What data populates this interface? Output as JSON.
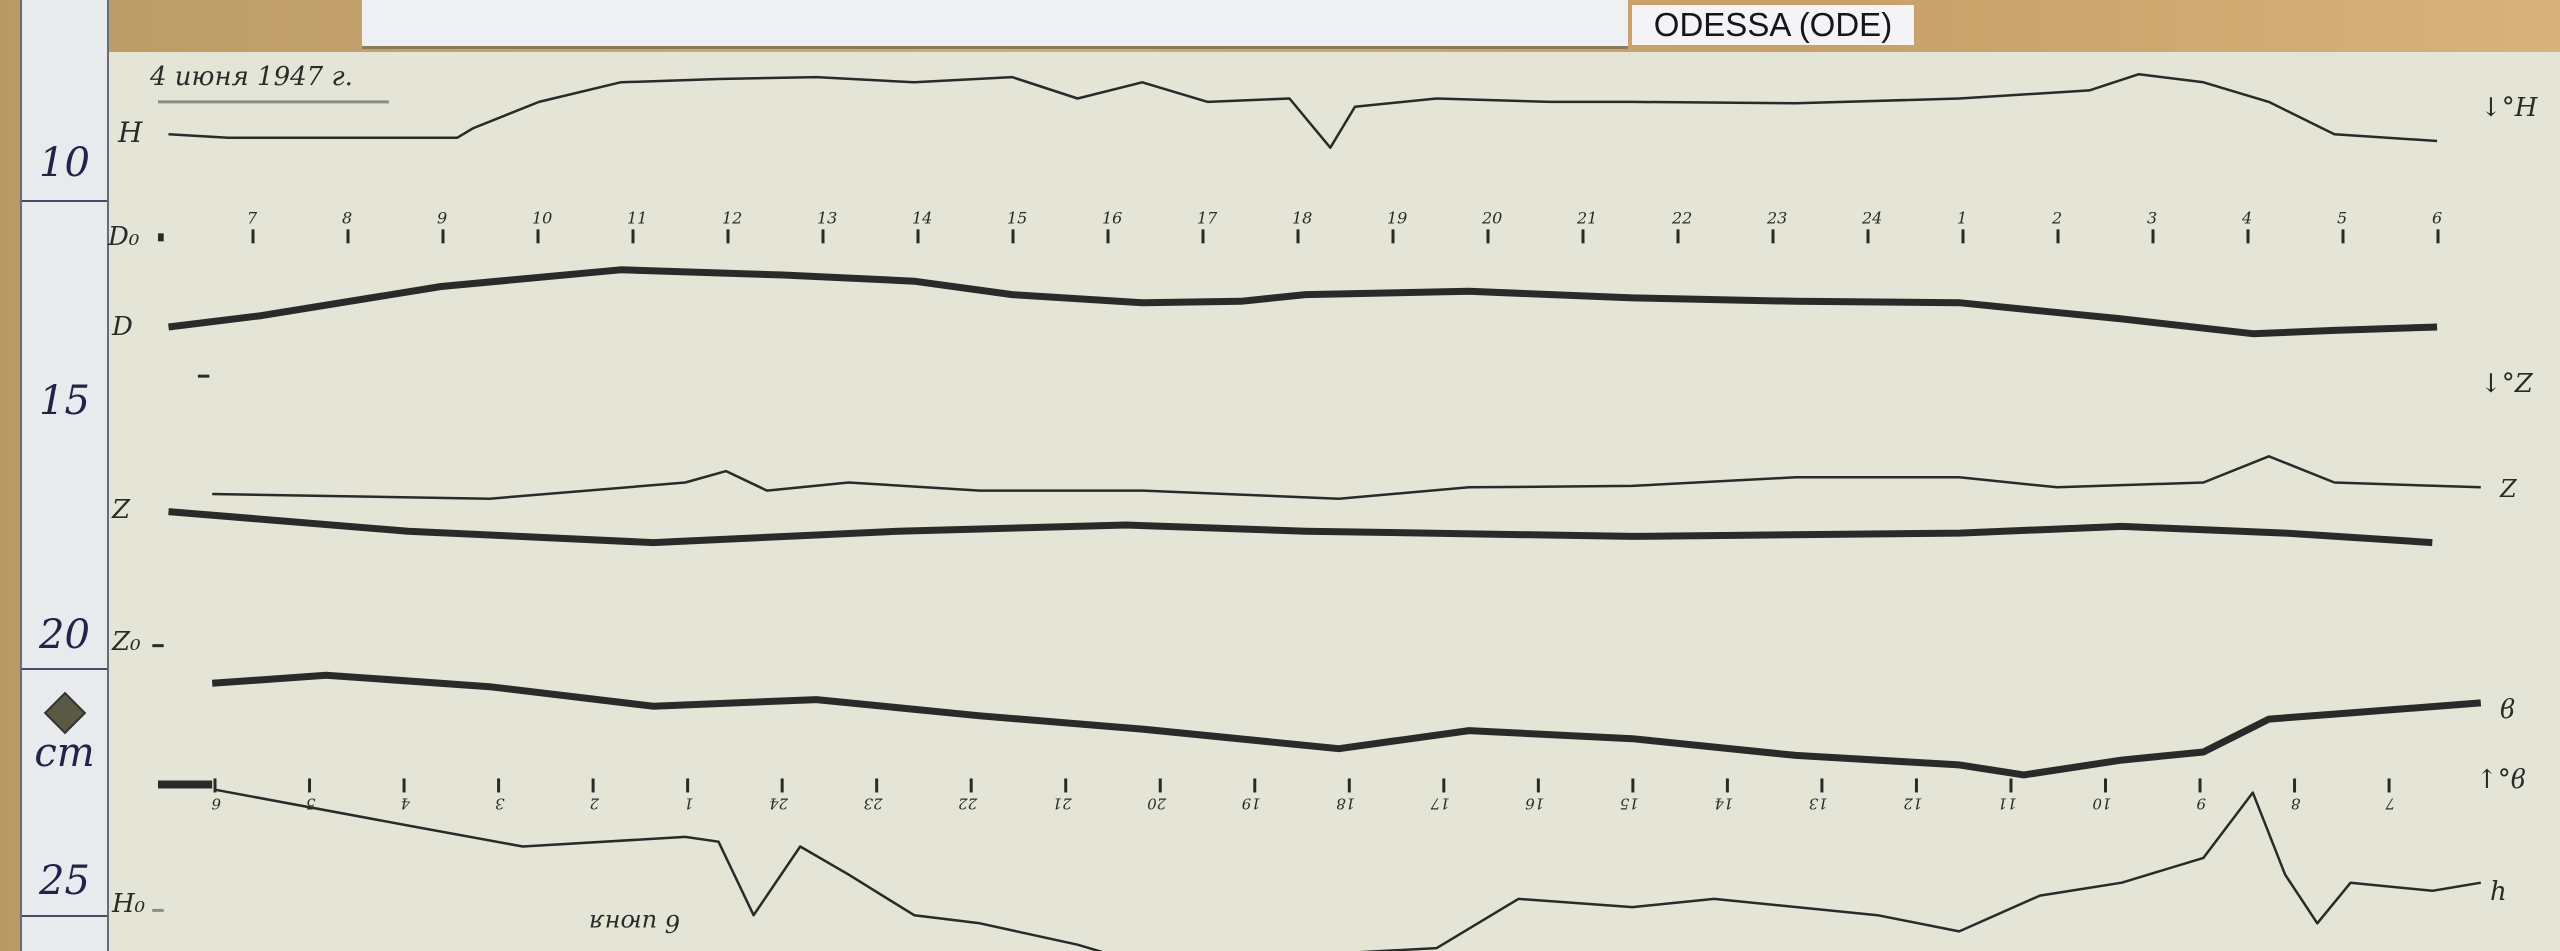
{
  "station_label": "ODESSA (ODE)",
  "date_note": "4 июня 1947 г.",
  "bottom_note": "6 июня",
  "ruler": {
    "labels": [
      "10",
      "15",
      "20",
      "cm",
      "25"
    ],
    "unit": "cm"
  },
  "trace_labels": {
    "left": [
      "H",
      "D₀",
      "D",
      "Z",
      "Z₀",
      "H₀"
    ],
    "right": [
      "↓°H",
      "↓°Z",
      "Z",
      "ϐ",
      "↑°ϐ",
      "h"
    ]
  },
  "colors": {
    "paper": "#e4e5d6",
    "trace": "#2a2a2a",
    "wood": "#c9a36a",
    "ruler": "#e7ebee"
  },
  "chart_data": {
    "type": "line",
    "title": "",
    "x_unit": "hour",
    "y_unit": "cm",
    "ylim": [
      7.5,
      26.8
    ],
    "y_inverted": true,
    "top_axis_ticks": [
      "7",
      "8",
      "9",
      "10",
      "11",
      "12",
      "13",
      "14",
      "15",
      "16",
      "17",
      "18",
      "19",
      "20",
      "21",
      "22",
      "23",
      "24",
      "1",
      "2",
      "3",
      "4",
      "5",
      "6"
    ],
    "bottom_axis_ticks": [
      "6",
      "5",
      "4",
      "3",
      "2",
      "1",
      "24",
      "23",
      "22",
      "21",
      "20",
      "19",
      "18",
      "17",
      "16",
      "15",
      "14",
      "13",
      "12",
      "11",
      "10",
      "9",
      "8",
      "7"
    ],
    "baselines": [
      {
        "name": "H0-top",
        "y": 8.53,
        "x": [
          8.43,
          6.0
        ]
      },
      {
        "name": "D0-axis",
        "y": 11.37,
        "x": [
          6.06,
          6.0
        ]
      },
      {
        "name": "Z-baseline",
        "y": 14.28,
        "x": [
          6.54,
          6.42
        ]
      },
      {
        "name": "Z0",
        "y": 19.93,
        "x": [
          6.06,
          5.94
        ]
      },
      {
        "name": "bottom-axis",
        "y": 22.84,
        "x": [
          6.57,
          6.0
        ]
      },
      {
        "name": "H0",
        "y": 25.48,
        "x": [
          6.06,
          5.94
        ]
      }
    ],
    "series": [
      {
        "name": "H",
        "weight": "thin",
        "points": [
          [
            6.11,
            9.21
          ],
          [
            6.74,
            9.28
          ],
          [
            9.15,
            9.28
          ],
          [
            9.32,
            9.08
          ],
          [
            10.01,
            8.53
          ],
          [
            10.87,
            8.12
          ],
          [
            11.9,
            8.05
          ],
          [
            12.93,
            8.01
          ],
          [
            13.96,
            8.12
          ],
          [
            14.99,
            8.01
          ],
          [
            15.68,
            8.46
          ],
          [
            16.36,
            8.12
          ],
          [
            17.05,
            8.53
          ],
          [
            17.91,
            8.46
          ],
          [
            18.34,
            9.49
          ],
          [
            18.6,
            8.63
          ],
          [
            19.46,
            8.46
          ],
          [
            20.66,
            8.53
          ],
          [
            21.52,
            8.53
          ],
          [
            23.24,
            8.56
          ],
          [
            0.96,
            8.46
          ],
          [
            2.33,
            8.29
          ],
          [
            2.85,
            7.95
          ],
          [
            3.53,
            8.12
          ],
          [
            4.22,
            8.53
          ],
          [
            4.91,
            9.21
          ],
          [
            5.99,
            9.35
          ]
        ]
      },
      {
        "name": "D",
        "weight": "thick",
        "points": [
          [
            6.11,
            13.25
          ],
          [
            7.09,
            13.01
          ],
          [
            8.98,
            12.4
          ],
          [
            10.87,
            12.05
          ],
          [
            12.58,
            12.16
          ],
          [
            13.96,
            12.29
          ],
          [
            14.99,
            12.57
          ],
          [
            16.36,
            12.74
          ],
          [
            17.4,
            12.71
          ],
          [
            18.08,
            12.57
          ],
          [
            19.8,
            12.5
          ],
          [
            21.52,
            12.64
          ],
          [
            23.24,
            12.71
          ],
          [
            0.96,
            12.74
          ],
          [
            1.81,
            12.91
          ],
          [
            2.67,
            13.08
          ],
          [
            4.05,
            13.39
          ],
          [
            4.91,
            13.32
          ],
          [
            5.99,
            13.25
          ]
        ]
      },
      {
        "name": "Z",
        "weight": "thin",
        "points": [
          [
            6.57,
            16.75
          ],
          [
            9.49,
            16.85
          ],
          [
            11.55,
            16.51
          ],
          [
            11.98,
            16.27
          ],
          [
            12.41,
            16.68
          ],
          [
            13.27,
            16.51
          ],
          [
            14.65,
            16.68
          ],
          [
            16.36,
            16.68
          ],
          [
            18.43,
            16.85
          ],
          [
            19.8,
            16.61
          ],
          [
            21.52,
            16.58
          ],
          [
            23.24,
            16.4
          ],
          [
            0.96,
            16.4
          ],
          [
            1.99,
            16.61
          ],
          [
            3.53,
            16.51
          ],
          [
            4.22,
            15.96
          ],
          [
            4.91,
            16.51
          ],
          [
            6.45,
            16.61
          ]
        ]
      },
      {
        "name": "Z-thick",
        "weight": "thick",
        "points": [
          [
            6.11,
            17.12
          ],
          [
            8.63,
            17.53
          ],
          [
            11.21,
            17.77
          ],
          [
            13.79,
            17.53
          ],
          [
            16.19,
            17.4
          ],
          [
            18.08,
            17.53
          ],
          [
            21.52,
            17.64
          ],
          [
            0.96,
            17.57
          ],
          [
            2.67,
            17.43
          ],
          [
            4.39,
            17.57
          ],
          [
            5.94,
            17.77
          ]
        ]
      },
      {
        "name": "ϐ",
        "weight": "thick",
        "points": [
          [
            6.57,
            20.72
          ],
          [
            7.77,
            20.55
          ],
          [
            9.49,
            20.79
          ],
          [
            11.21,
            21.2
          ],
          [
            12.93,
            21.06
          ],
          [
            14.65,
            21.4
          ],
          [
            16.36,
            21.68
          ],
          [
            18.43,
            22.09
          ],
          [
            19.8,
            21.71
          ],
          [
            21.52,
            21.88
          ],
          [
            23.24,
            22.23
          ],
          [
            0.96,
            22.43
          ],
          [
            1.64,
            22.64
          ],
          [
            2.67,
            22.33
          ],
          [
            3.53,
            22.16
          ],
          [
            4.22,
            21.47
          ],
          [
            5.08,
            21.34
          ],
          [
            6.45,
            21.13
          ]
        ]
      },
      {
        "name": "H-bottom",
        "weight": "thin",
        "points": [
          [
            6.6,
            22.95
          ],
          [
            8.63,
            23.7
          ],
          [
            9.84,
            24.14
          ],
          [
            11.55,
            23.94
          ],
          [
            11.9,
            24.04
          ],
          [
            12.27,
            25.58
          ],
          [
            12.76,
            24.14
          ],
          [
            13.27,
            24.73
          ],
          [
            13.96,
            25.58
          ],
          [
            14.65,
            25.75
          ],
          [
            15.68,
            26.2
          ],
          [
            16.36,
            26.6
          ],
          [
            19.46,
            26.27
          ],
          [
            20.32,
            25.24
          ],
          [
            21.52,
            25.41
          ],
          [
            22.38,
            25.24
          ],
          [
            0.1,
            25.58
          ],
          [
            0.96,
            25.92
          ],
          [
            1.81,
            25.17
          ],
          [
            2.67,
            24.9
          ],
          [
            3.53,
            24.38
          ],
          [
            4.05,
            23.01
          ],
          [
            4.39,
            24.73
          ],
          [
            4.73,
            25.75
          ],
          [
            5.08,
            24.9
          ],
          [
            5.94,
            25.07
          ],
          [
            6.45,
            24.9
          ]
        ]
      }
    ]
  }
}
